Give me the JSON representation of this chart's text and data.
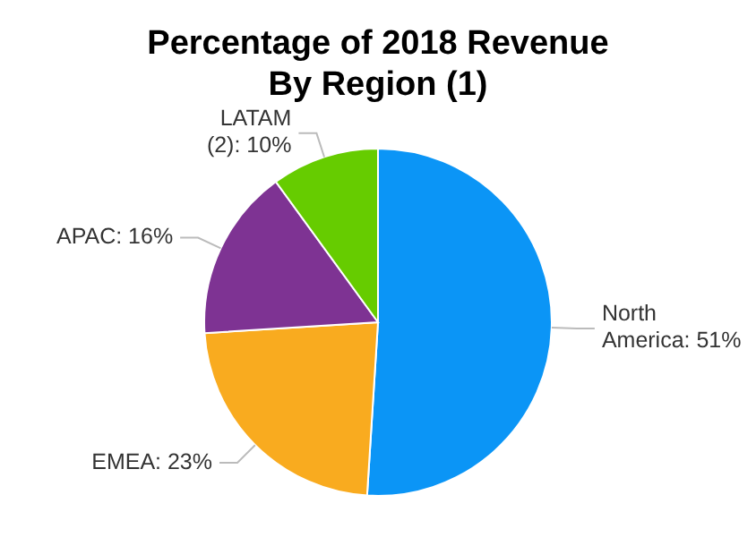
{
  "chart_data": {
    "type": "pie",
    "title": "Percentage of 2018 Revenue By Region (1)",
    "categories": [
      "North America",
      "EMEA",
      "APAC",
      "LATAM (2)"
    ],
    "values": [
      51,
      23,
      16,
      10
    ],
    "value_labels": [
      "51%",
      "23%",
      "16%",
      "10%"
    ],
    "colors": [
      "#0b95f6",
      "#f9ab1f",
      "#7e3393",
      "#66cc00"
    ]
  }
}
